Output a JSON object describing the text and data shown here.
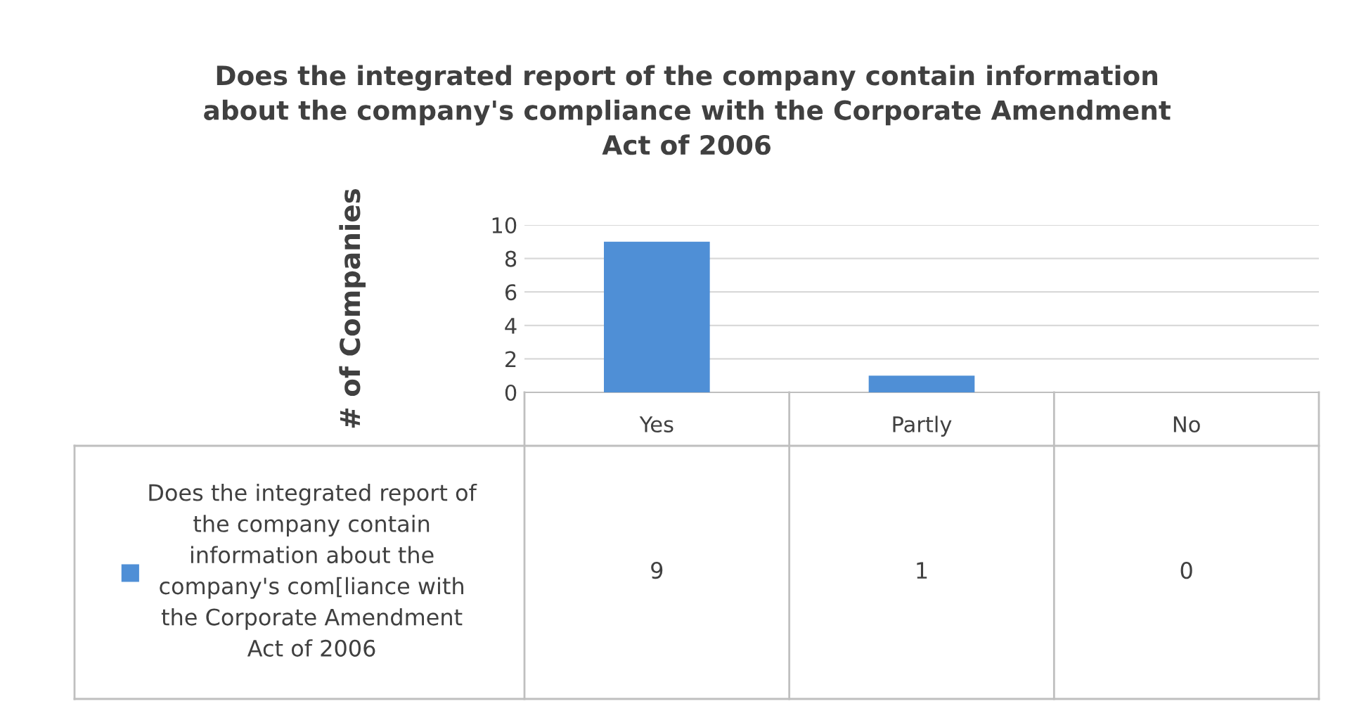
{
  "chart_data": {
    "type": "bar",
    "title": "Does the integrated report of the company contain information\nabout the company's compliance with the Corporate Amendment\nAct of 2006",
    "ylabel": "# of Companies",
    "categories": [
      "Yes",
      "Partly",
      "No"
    ],
    "series": [
      {
        "name": "Does the integrated report of\nthe company contain\ninformation about the\ncompany's com[liance with\nthe Corporate Amendment\nAct of 2006",
        "color": "#4f8fd6",
        "values": [
          9,
          1,
          0
        ]
      }
    ],
    "ylim": [
      0,
      10
    ],
    "yticks": [
      0,
      2,
      4,
      6,
      8,
      10
    ],
    "grid": "y",
    "data_labels": true,
    "legend": "bottom left"
  }
}
